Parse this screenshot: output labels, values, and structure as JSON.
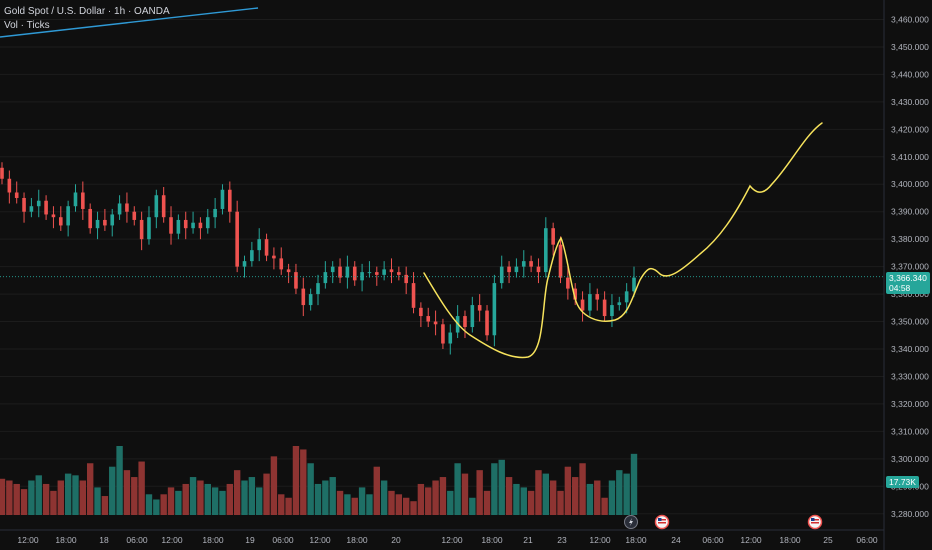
{
  "legend": {
    "symbol": "Gold Spot / U.S. Dollar · 1h · OANDA",
    "volume": "Vol · Ticks"
  },
  "colors": {
    "background": "#0f0f0f",
    "up": "#26a69a",
    "down": "#ef5350",
    "vol_up": "#1e6f66",
    "vol_down": "#8e3432",
    "drawing": "#f7e35c",
    "trendline": "#2f9ad6",
    "price_line": "#26a69a"
  },
  "price_tag": {
    "price": "3,366.340",
    "countdown": "04:58"
  },
  "volume_tag": "17.73K",
  "chart_data": {
    "type": "candlestick",
    "y_ticks": [
      "3,460.000",
      "3,450.000",
      "3,440.000",
      "3,430.000",
      "3,420.000",
      "3,410.000",
      "3,400.000",
      "3,390.000",
      "3,380.000",
      "3,370.000",
      "3,360.000",
      "3,350.000",
      "3,340.000",
      "3,330.000",
      "3,320.000",
      "3,310.000",
      "3,300.000",
      "3,290.000",
      "3,280.000"
    ],
    "y_range": [
      3277,
      3462
    ],
    "x_ticks": [
      "12:00",
      "18:00",
      "18",
      "06:00",
      "12:00",
      "18:00",
      "19",
      "06:00",
      "12:00",
      "18:00",
      "20",
      "12:00",
      "18:00",
      "21",
      "23",
      "12:00",
      "18:00",
      "24",
      "06:00",
      "12:00",
      "18:00",
      "25",
      "06:00"
    ],
    "candles_close": [
      3402,
      3397,
      3395,
      3390,
      3392,
      3394,
      3389,
      3388,
      3385,
      3392,
      3397,
      3391,
      3384,
      3387,
      3385,
      3389,
      3393,
      3390,
      3387,
      3380,
      3388,
      3396,
      3388,
      3382,
      3387,
      3384,
      3386,
      3384,
      3388,
      3391,
      3398,
      3390,
      3370,
      3372,
      3376,
      3380,
      3374,
      3373,
      3369,
      3368,
      3362,
      3356,
      3360,
      3364,
      3368,
      3370,
      3366,
      3370,
      3365,
      3368,
      3368,
      3367,
      3369,
      3368,
      3367,
      3364,
      3355,
      3352,
      3350,
      3349,
      3342,
      3346,
      3352,
      3348,
      3356,
      3354,
      3345,
      3364,
      3370,
      3368,
      3370,
      3372,
      3370,
      3368,
      3384,
      3378,
      3366,
      3362,
      3358,
      3354,
      3360,
      3358,
      3352,
      3356,
      3357,
      3361,
      3366
    ],
    "volumes": [
      10.5,
      10,
      9,
      7.5,
      10,
      11.5,
      9,
      7,
      10,
      12,
      11.5,
      10,
      15,
      8,
      5.5,
      14,
      20,
      13,
      11,
      15.5,
      6,
      4.5,
      6,
      8,
      7,
      9,
      11,
      10,
      9,
      8,
      7,
      9,
      13,
      10,
      11,
      8,
      12,
      17,
      6,
      5,
      20,
      19,
      15,
      9,
      10,
      11,
      7,
      6,
      5,
      8,
      6,
      14,
      10,
      7,
      6,
      5,
      4,
      9,
      8,
      10,
      11,
      7,
      15,
      12,
      5,
      13,
      7,
      15,
      16,
      11,
      9,
      8,
      7,
      13,
      12,
      10,
      7,
      14,
      11,
      15,
      9,
      10,
      5,
      10,
      13,
      12,
      17.73
    ],
    "drawings": [
      "yellow curved projection path",
      "blue trend line"
    ]
  },
  "icons": [
    "lightning-icon",
    "us-flag-event-icon",
    "us-flag-event-icon"
  ]
}
